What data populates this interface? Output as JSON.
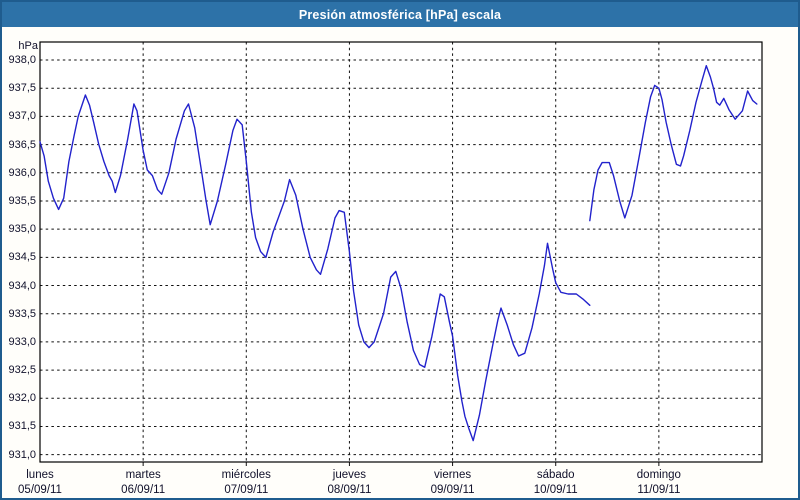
{
  "window": {
    "title": "Presión atmosférica [hPa] escala"
  },
  "colors": {
    "titlebar_bg": "#2d72a8",
    "window_border": "#1f5c8e",
    "background": "#fffefa",
    "plot_background": "#ffffff",
    "grid_color": "#111111",
    "axis_color": "#000000",
    "line_color": "#2222cc",
    "text_color": "#10102a",
    "title_text_color": "#ffffff"
  },
  "chart_data": {
    "type": "line",
    "title": "Presión atmosférica [hPa] escala",
    "ylabel": "hPa",
    "xlabel": "",
    "grid": "dashed",
    "legend_position": "none",
    "ylim": [
      930.87,
      938.32
    ],
    "xlim_days": [
      0,
      7
    ],
    "y_ticks": [
      {
        "value": 938.0,
        "label": "938,0"
      },
      {
        "value": 937.5,
        "label": "937,5"
      },
      {
        "value": 937.0,
        "label": "937,0"
      },
      {
        "value": 936.5,
        "label": "936,5"
      },
      {
        "value": 936.0,
        "label": "936,0"
      },
      {
        "value": 935.5,
        "label": "935,5"
      },
      {
        "value": 935.0,
        "label": "935,0"
      },
      {
        "value": 934.5,
        "label": "934,5"
      },
      {
        "value": 934.0,
        "label": "934,0"
      },
      {
        "value": 933.5,
        "label": "933,5"
      },
      {
        "value": 933.0,
        "label": "933,0"
      },
      {
        "value": 932.5,
        "label": "932,5"
      },
      {
        "value": 932.0,
        "label": "932,0"
      },
      {
        "value": 931.5,
        "label": "931,5"
      },
      {
        "value": 931.0,
        "label": "931,0"
      }
    ],
    "x_days": [
      {
        "name": "lunes",
        "date": "05/09/11",
        "day_index": 0
      },
      {
        "name": "martes",
        "date": "06/09/11",
        "day_index": 1
      },
      {
        "name": "miércoles",
        "date": "07/09/11",
        "day_index": 2
      },
      {
        "name": "jueves",
        "date": "08/09/11",
        "day_index": 3
      },
      {
        "name": "viernes",
        "date": "09/09/11",
        "day_index": 4
      },
      {
        "name": "sábado",
        "date": "10/09/11",
        "day_index": 5
      },
      {
        "name": "domingo",
        "date": "11/09/11",
        "day_index": 6
      }
    ],
    "series": [
      {
        "name": "Presión atmosférica",
        "unit": "hPa",
        "segments": [
          [
            [
              0.0,
              936.55
            ],
            [
              0.04,
              936.3
            ],
            [
              0.08,
              935.85
            ],
            [
              0.13,
              935.55
            ],
            [
              0.18,
              935.35
            ],
            [
              0.23,
              935.55
            ],
            [
              0.28,
              936.2
            ],
            [
              0.33,
              936.65
            ],
            [
              0.37,
              937.0
            ],
            [
              0.44,
              937.38
            ],
            [
              0.48,
              937.2
            ],
            [
              0.52,
              936.9
            ],
            [
              0.57,
              936.5
            ],
            [
              0.62,
              936.2
            ],
            [
              0.67,
              935.95
            ],
            [
              0.7,
              935.85
            ],
            [
              0.73,
              935.65
            ],
            [
              0.78,
              935.95
            ],
            [
              0.85,
              936.6
            ],
            [
              0.91,
              937.22
            ],
            [
              0.94,
              937.1
            ],
            [
              1.0,
              936.4
            ],
            [
              1.04,
              936.05
            ],
            [
              1.09,
              935.95
            ],
            [
              1.14,
              935.7
            ],
            [
              1.18,
              935.62
            ],
            [
              1.25,
              936.0
            ],
            [
              1.32,
              936.6
            ],
            [
              1.4,
              937.1
            ],
            [
              1.44,
              937.22
            ],
            [
              1.5,
              936.8
            ],
            [
              1.56,
              936.1
            ],
            [
              1.61,
              935.5
            ],
            [
              1.65,
              935.08
            ],
            [
              1.72,
              935.5
            ],
            [
              1.8,
              936.15
            ],
            [
              1.87,
              936.75
            ],
            [
              1.91,
              936.95
            ],
            [
              1.96,
              936.85
            ],
            [
              2.0,
              936.2
            ],
            [
              2.05,
              935.3
            ],
            [
              2.09,
              934.85
            ],
            [
              2.14,
              934.6
            ],
            [
              2.19,
              934.5
            ],
            [
              2.26,
              934.95
            ],
            [
              2.31,
              935.2
            ],
            [
              2.37,
              935.5
            ],
            [
              2.42,
              935.88
            ],
            [
              2.48,
              935.6
            ],
            [
              2.55,
              935.0
            ],
            [
              2.62,
              934.5
            ],
            [
              2.68,
              934.28
            ],
            [
              2.72,
              934.2
            ],
            [
              2.79,
              934.65
            ],
            [
              2.86,
              935.2
            ],
            [
              2.9,
              935.33
            ],
            [
              2.95,
              935.3
            ],
            [
              3.0,
              934.6
            ],
            [
              3.04,
              933.9
            ],
            [
              3.09,
              933.3
            ],
            [
              3.14,
              933.0
            ],
            [
              3.19,
              932.9
            ],
            [
              3.24,
              933.0
            ],
            [
              3.33,
              933.5
            ],
            [
              3.4,
              934.15
            ],
            [
              3.45,
              934.25
            ],
            [
              3.5,
              933.95
            ],
            [
              3.56,
              933.35
            ],
            [
              3.62,
              932.85
            ],
            [
              3.68,
              932.6
            ],
            [
              3.73,
              932.55
            ],
            [
              3.8,
              933.1
            ],
            [
              3.88,
              933.85
            ],
            [
              3.92,
              933.8
            ],
            [
              3.97,
              933.35
            ],
            [
              4.0,
              933.1
            ],
            [
              4.05,
              932.4
            ],
            [
              4.09,
              931.95
            ],
            [
              4.12,
              931.68
            ],
            [
              4.16,
              931.45
            ],
            [
              4.2,
              931.25
            ],
            [
              4.26,
              931.7
            ],
            [
              4.32,
              932.3
            ],
            [
              4.39,
              932.95
            ],
            [
              4.44,
              933.4
            ],
            [
              4.47,
              933.6
            ],
            [
              4.53,
              933.3
            ],
            [
              4.59,
              932.95
            ],
            [
              4.64,
              932.75
            ],
            [
              4.7,
              932.8
            ],
            [
              4.77,
              933.25
            ],
            [
              4.84,
              933.85
            ],
            [
              4.89,
              934.35
            ],
            [
              4.92,
              934.75
            ],
            [
              4.97,
              934.3
            ],
            [
              5.0,
              934.05
            ],
            [
              5.05,
              933.88
            ],
            [
              5.12,
              933.85
            ],
            [
              5.2,
              933.85
            ],
            [
              5.27,
              933.75
            ],
            [
              5.33,
              933.65
            ]
          ],
          [
            [
              5.33,
              935.15
            ],
            [
              5.37,
              935.7
            ],
            [
              5.41,
              936.05
            ],
            [
              5.45,
              936.18
            ],
            [
              5.52,
              936.18
            ],
            [
              5.56,
              935.95
            ],
            [
              5.62,
              935.5
            ],
            [
              5.67,
              935.2
            ],
            [
              5.74,
              935.6
            ],
            [
              5.81,
              936.3
            ],
            [
              5.87,
              936.9
            ],
            [
              5.92,
              937.35
            ],
            [
              5.96,
              937.55
            ],
            [
              6.0,
              937.5
            ],
            [
              6.03,
              937.3
            ],
            [
              6.07,
              936.9
            ],
            [
              6.12,
              936.5
            ],
            [
              6.17,
              936.15
            ],
            [
              6.21,
              936.12
            ],
            [
              6.24,
              936.3
            ],
            [
              6.3,
              936.75
            ],
            [
              6.36,
              937.25
            ],
            [
              6.42,
              937.65
            ],
            [
              6.46,
              937.9
            ],
            [
              6.5,
              937.7
            ],
            [
              6.53,
              937.5
            ],
            [
              6.56,
              937.25
            ],
            [
              6.59,
              937.2
            ],
            [
              6.63,
              937.32
            ],
            [
              6.68,
              937.12
            ],
            [
              6.74,
              936.95
            ],
            [
              6.81,
              937.1
            ],
            [
              6.86,
              937.45
            ],
            [
              6.91,
              937.28
            ],
            [
              6.95,
              937.22
            ]
          ]
        ]
      }
    ]
  }
}
